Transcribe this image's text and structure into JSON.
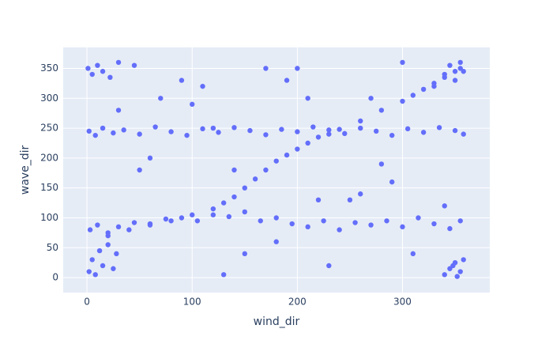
{
  "chart_data": {
    "type": "scatter",
    "x_label": "wind_dir",
    "y_label": "wave_dir",
    "color": "#636efa",
    "background": "#e5ecf6",
    "grid": true,
    "xlim": [
      -22.6,
      383
    ],
    "ylim": [
      -25,
      385
    ],
    "xticks": [
      0,
      100,
      200,
      300
    ],
    "yticks": [
      0,
      50,
      100,
      150,
      200,
      250,
      300,
      350
    ],
    "x": [
      2,
      8,
      15,
      25,
      35,
      50,
      65,
      80,
      95,
      110,
      125,
      140,
      155,
      170,
      185,
      200,
      215,
      230,
      245,
      260,
      275,
      290,
      305,
      320,
      335,
      350,
      358,
      3,
      10,
      20,
      30,
      45,
      60,
      75,
      90,
      105,
      120,
      135,
      150,
      165,
      180,
      195,
      210,
      225,
      240,
      255,
      270,
      285,
      300,
      315,
      330,
      345,
      355,
      20,
      40,
      60,
      80,
      100,
      120,
      130,
      140,
      150,
      160,
      170,
      180,
      190,
      200,
      210,
      220,
      230,
      240,
      260,
      280,
      300,
      310,
      320,
      330,
      340,
      350,
      355,
      2,
      5,
      8,
      12,
      15,
      20,
      25,
      28,
      340,
      345,
      350,
      355,
      358,
      348,
      352,
      1,
      5,
      10,
      15,
      22,
      30,
      45,
      330,
      340,
      345,
      350,
      355,
      358,
      50,
      70,
      90,
      110,
      130,
      150,
      170,
      190,
      210,
      230,
      250,
      270,
      290,
      310,
      60,
      100,
      140,
      180,
      220,
      260,
      300,
      340,
      30,
      120,
      200,
      280
    ],
    "y": [
      245,
      238,
      250,
      242,
      247,
      240,
      252,
      244,
      238,
      249,
      243,
      251,
      246,
      239,
      248,
      244,
      252,
      247,
      241,
      250,
      245,
      238,
      249,
      243,
      251,
      246,
      240,
      80,
      88,
      75,
      85,
      92,
      90,
      98,
      100,
      95,
      105,
      102,
      110,
      95,
      100,
      90,
      85,
      95,
      80,
      92,
      88,
      95,
      85,
      100,
      90,
      82,
      95,
      70,
      80,
      88,
      95,
      105,
      115,
      125,
      135,
      150,
      165,
      180,
      195,
      205,
      215,
      225,
      235,
      240,
      248,
      262,
      280,
      295,
      305,
      315,
      325,
      335,
      345,
      350,
      10,
      30,
      5,
      45,
      20,
      55,
      15,
      40,
      5,
      15,
      25,
      10,
      30,
      20,
      2,
      350,
      340,
      355,
      345,
      335,
      360,
      355,
      320,
      340,
      355,
      330,
      360,
      345,
      180,
      300,
      330,
      320,
      5,
      40,
      350,
      330,
      300,
      20,
      130,
      300,
      160,
      40,
      200,
      290,
      180,
      60,
      130,
      140,
      360,
      120,
      280,
      250,
      350,
      190
    ]
  }
}
